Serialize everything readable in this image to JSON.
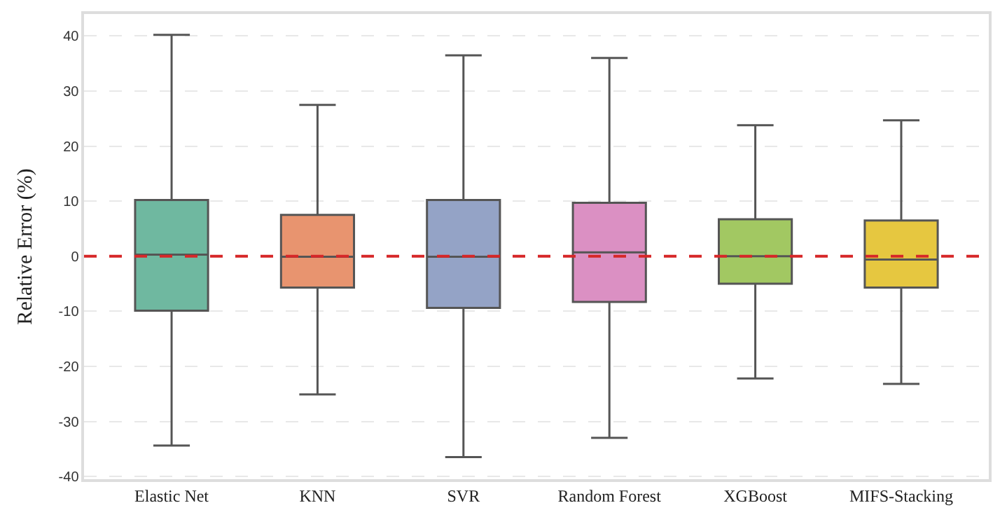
{
  "chart_data": {
    "type": "box",
    "ylabel": "Relative Error (%)",
    "categories": [
      "Elastic Net",
      "KNN",
      "SVR",
      "Random Forest",
      "XGBoost",
      "MIFS-Stacking"
    ],
    "boxes": [
      {
        "low": -34.4,
        "q1": -9.9,
        "median": 0.3,
        "q3": 10.2,
        "high": 40.2
      },
      {
        "low": -25.1,
        "q1": -5.7,
        "median": -0.1,
        "q3": 7.5,
        "high": 27.5
      },
      {
        "low": -36.5,
        "q1": -9.4,
        "median": -0.1,
        "q3": 10.2,
        "high": 36.5
      },
      {
        "low": -33.0,
        "q1": -8.3,
        "median": 0.7,
        "q3": 9.7,
        "high": 36.0
      },
      {
        "low": -22.2,
        "q1": -5.0,
        "median": 0.0,
        "q3": 6.7,
        "high": 23.8
      },
      {
        "low": -23.2,
        "q1": -5.7,
        "median": -0.6,
        "q3": 6.5,
        "high": 24.7
      }
    ],
    "colors": [
      "#6fb8a0",
      "#e8946f",
      "#94a3c6",
      "#db90c3",
      "#a2c862",
      "#e6c740"
    ],
    "ylim": [
      -40.5,
      44
    ],
    "yticks": [
      -40,
      -30,
      -20,
      -10,
      0,
      10,
      20,
      30,
      40
    ],
    "grid": "y",
    "legend": false,
    "ref_lines": [
      {
        "axis": "y",
        "value": 0,
        "color": "#d62728",
        "line_style": "dashed"
      }
    ]
  }
}
